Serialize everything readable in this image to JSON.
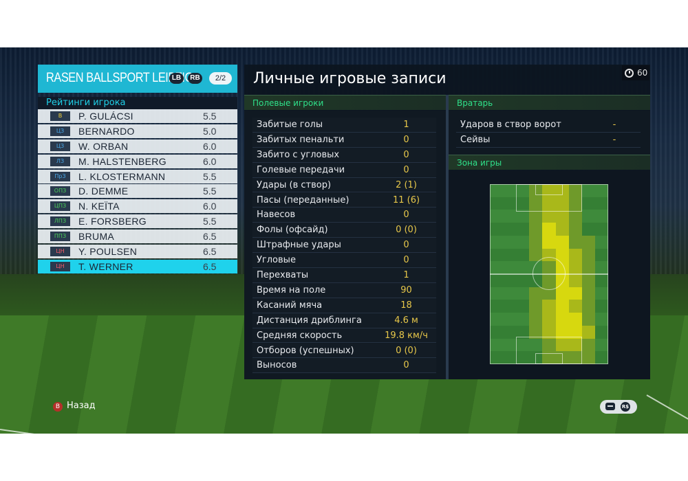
{
  "team": {
    "name": "RASEN BALLSPORT LEIPZIG",
    "lb_button": "LB",
    "rb_button": "RB",
    "page": "2/2"
  },
  "ratings_label": "Рейтинги игрока",
  "players": [
    {
      "pos": "В",
      "pos_color": "#f2d13a",
      "name": "P. GULÁCSI",
      "rating": "5.5",
      "selected": false
    },
    {
      "pos": "ЦЗ",
      "pos_color": "#4aa8e8",
      "name": "BERNARDO",
      "rating": "5.0",
      "selected": false
    },
    {
      "pos": "ЦЗ",
      "pos_color": "#4aa8e8",
      "name": "W. ORBAN",
      "rating": "6.0",
      "selected": false
    },
    {
      "pos": "ЛЗ",
      "pos_color": "#4aa8e8",
      "name": "M. HALSTENBERG",
      "rating": "6.0",
      "selected": false
    },
    {
      "pos": "ПрЗ",
      "pos_color": "#4aa8e8",
      "name": "L. KLOSTERMANN",
      "rating": "5.5",
      "selected": false
    },
    {
      "pos": "ОПЗ",
      "pos_color": "#4ccf5a",
      "name": "D. DEMME",
      "rating": "5.5",
      "selected": false
    },
    {
      "pos": "ЦПЗ",
      "pos_color": "#4ccf5a",
      "name": "N. KEÏTA",
      "rating": "6.0",
      "selected": false
    },
    {
      "pos": "ЛПЗ",
      "pos_color": "#4ccf5a",
      "name": "E. FORSBERG",
      "rating": "5.5",
      "selected": false
    },
    {
      "pos": "ППЗ",
      "pos_color": "#4ccf5a",
      "name": "BRUMA",
      "rating": "6.5",
      "selected": false
    },
    {
      "pos": "ЦН",
      "pos_color": "#ff5d6a",
      "name": "Y. POULSEN",
      "rating": "6.5",
      "selected": false
    },
    {
      "pos": "ЦН",
      "pos_color": "#ff5d6a",
      "name": "T. WERNER",
      "rating": "6.5",
      "selected": true
    }
  ],
  "title": "Личные игровые записи",
  "timer": "60",
  "field_section": {
    "header": "Полевые игроки",
    "stats": [
      {
        "label": "Забитые голы",
        "value": "1"
      },
      {
        "label": "Забитых пенальти",
        "value": "0"
      },
      {
        "label": "Забито с угловых",
        "value": "0"
      },
      {
        "label": "Голевые передачи",
        "value": "0"
      },
      {
        "label": "Удары (в створ)",
        "value": "2 (1)"
      },
      {
        "label": "Пасы (переданные)",
        "value": "11 (6)"
      },
      {
        "label": "Навесов",
        "value": "0"
      },
      {
        "label": "Фолы (офсайд)",
        "value": "0 (0)"
      },
      {
        "label": "Штрафные удары",
        "value": "0"
      },
      {
        "label": "Угловые",
        "value": "0"
      },
      {
        "label": "Перехваты",
        "value": "1"
      },
      {
        "label": "Время на поле",
        "value": "90"
      },
      {
        "label": "Касаний мяча",
        "value": "18"
      },
      {
        "label": "Дистанция дриблинга",
        "value": "4.6 м"
      },
      {
        "label": "Средняя скорость",
        "value": "19.8 км/ч"
      },
      {
        "label": "Отборов (успешных)",
        "value": "0 (0)"
      },
      {
        "label": "Выносов",
        "value": "0"
      }
    ]
  },
  "gk_section": {
    "header": "Вратарь",
    "stats": [
      {
        "label": "Ударов в створ ворот",
        "value": "-"
      },
      {
        "label": "Сейвы",
        "value": "-"
      }
    ]
  },
  "zone_section": {
    "header": "Зона игры",
    "heatmap_levels": [
      [
        0,
        0,
        0,
        1,
        2,
        2,
        1,
        0,
        0
      ],
      [
        0,
        0,
        0,
        1,
        2,
        2,
        1,
        0,
        0
      ],
      [
        0,
        0,
        0,
        1,
        2,
        2,
        1,
        0,
        0
      ],
      [
        0,
        0,
        0,
        1,
        3,
        2,
        1,
        0,
        0
      ],
      [
        0,
        0,
        0,
        1,
        3,
        3,
        1,
        1,
        0
      ],
      [
        0,
        0,
        0,
        1,
        2,
        3,
        2,
        1,
        0
      ],
      [
        0,
        0,
        0,
        0,
        1,
        3,
        2,
        1,
        0
      ],
      [
        0,
        0,
        0,
        0,
        1,
        3,
        2,
        1,
        0
      ],
      [
        0,
        0,
        0,
        1,
        1,
        3,
        3,
        1,
        0
      ],
      [
        0,
        0,
        0,
        1,
        2,
        3,
        2,
        1,
        0
      ],
      [
        0,
        0,
        0,
        1,
        2,
        3,
        3,
        1,
        0
      ],
      [
        0,
        0,
        0,
        1,
        2,
        3,
        3,
        2,
        0
      ],
      [
        0,
        0,
        0,
        0,
        1,
        2,
        2,
        1,
        0
      ],
      [
        0,
        0,
        0,
        0,
        1,
        1,
        1,
        1,
        0
      ]
    ],
    "heat_colors": [
      "#3f8a3c",
      "#6f9a2a",
      "#a9b81a",
      "#d7d80f"
    ]
  },
  "footer": {
    "back_icon": "B",
    "back_label": "Назад",
    "rs_icon": "R$"
  }
}
